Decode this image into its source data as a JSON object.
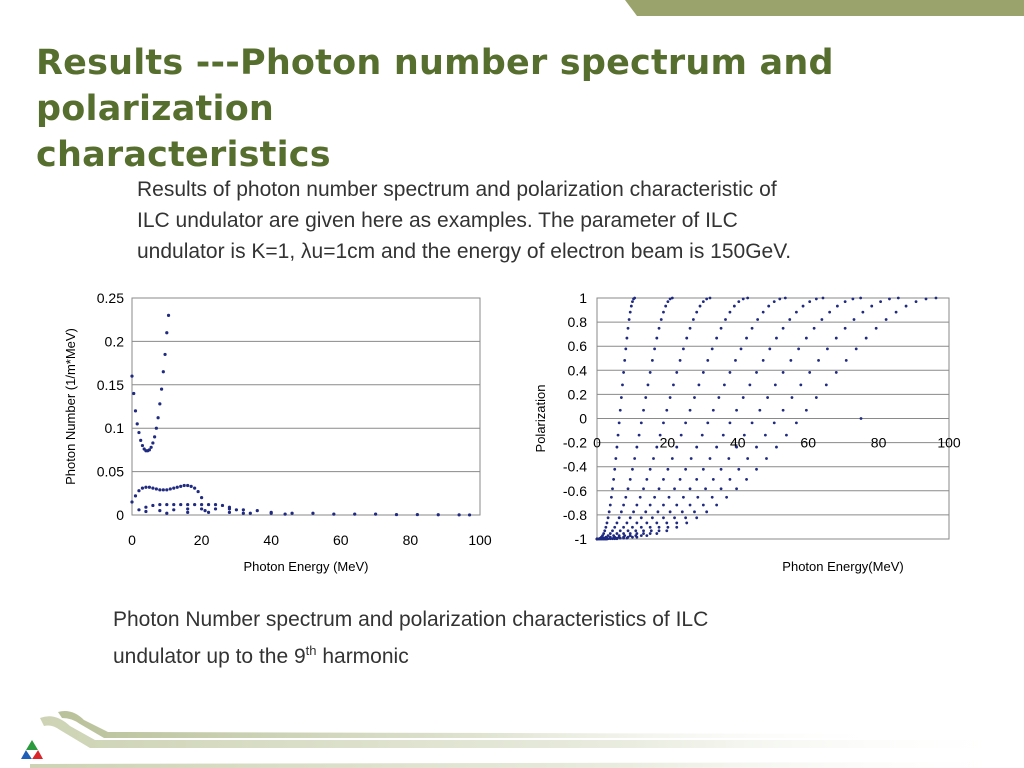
{
  "slide": {
    "title_line1": "Results ---Photon number spectrum and polarization",
    "title_line2": "characteristics",
    "paragraph_line1": "Results of photon number spectrum and polarization characteristic of",
    "paragraph_line2": "ILC undulator are given here as examples.   The parameter of ILC",
    "paragraph_line3": "undulator is K=1, λu=1cm and the energy of electron beam is 150GeV.",
    "caption_line1": "Photon Number spectrum and polarization characteristics of ILC",
    "caption_line2_pre": "undulator up to the 9",
    "caption_sup": "th",
    "caption_line2_post": " harmonic",
    "accent_color": "#566e2e",
    "band_color": "#9aa36b"
  },
  "chart_data": [
    {
      "type": "scatter",
      "xlabel": "Photon Energy (MeV)",
      "ylabel": "Photon Number (1/m*MeV)",
      "xlim": [
        0,
        100
      ],
      "ylim": [
        0,
        0.25
      ],
      "xticks": [
        "0",
        "20",
        "40",
        "60",
        "80",
        "100"
      ],
      "yticks": [
        "0",
        "0.05",
        "0.1",
        "0.15",
        "0.2",
        "0.25"
      ],
      "grid": true,
      "marker_color": "#1f2a80",
      "series": [
        {
          "x": [
            0,
            0.5,
            1,
            1.5,
            2,
            2.5,
            3,
            3.5,
            4,
            4.5,
            5,
            5.5,
            6,
            6.5,
            7,
            7.5,
            8,
            8.5,
            9,
            9.5,
            10,
            10.5
          ],
          "y": [
            0.16,
            0.14,
            0.12,
            0.105,
            0.095,
            0.086,
            0.08,
            0.076,
            0.074,
            0.074,
            0.075,
            0.078,
            0.083,
            0.09,
            0.1,
            0.112,
            0.128,
            0.145,
            0.165,
            0.185,
            0.21,
            0.23
          ]
        },
        {
          "x": [
            0,
            1,
            2,
            3,
            4,
            5,
            6,
            7,
            8,
            9,
            10,
            11,
            12,
            13,
            14,
            15,
            16,
            17,
            18,
            19,
            20,
            21
          ],
          "y": [
            0.015,
            0.022,
            0.028,
            0.031,
            0.032,
            0.032,
            0.031,
            0.03,
            0.029,
            0.029,
            0.029,
            0.03,
            0.031,
            0.032,
            0.033,
            0.034,
            0.034,
            0.033,
            0.031,
            0.027,
            0.02,
            0.005
          ]
        },
        {
          "x": [
            2,
            4,
            6,
            8,
            10,
            12,
            14,
            16,
            18,
            20,
            22,
            24,
            26,
            28,
            30,
            32
          ],
          "y": [
            0.006,
            0.009,
            0.011,
            0.012,
            0.012,
            0.012,
            0.012,
            0.012,
            0.012,
            0.012,
            0.012,
            0.012,
            0.011,
            0.009,
            0.006,
            0.002
          ]
        },
        {
          "x": [
            4,
            8,
            12,
            16,
            20,
            24,
            28,
            32,
            36,
            40,
            44
          ],
          "y": [
            0.004,
            0.005,
            0.006,
            0.007,
            0.007,
            0.007,
            0.007,
            0.006,
            0.005,
            0.003,
            0.001
          ]
        },
        {
          "x": [
            10,
            16,
            22,
            28,
            34,
            40,
            46,
            52,
            58,
            64,
            70,
            76,
            82,
            88,
            94,
            97
          ],
          "y": [
            0.002,
            0.003,
            0.003,
            0.003,
            0.002,
            0.002,
            0.002,
            0.002,
            0.001,
            0.001,
            0.001,
            0.0005,
            0.0005,
            0.0003,
            0.0002,
            0.0001
          ]
        }
      ]
    },
    {
      "type": "scatter",
      "xlabel": "Photon Energy(MeV)",
      "ylabel": "Polarization",
      "xlim": [
        0,
        100
      ],
      "ylim": [
        -1,
        1
      ],
      "xticks": [
        "0",
        "20",
        "40",
        "60",
        "80",
        "100"
      ],
      "yticks": [
        "-1",
        "-0.8",
        "-0.6",
        "-0.4",
        "-0.2",
        "0",
        "0.2",
        "0.4",
        "0.6",
        "0.8",
        "1"
      ],
      "grid": true,
      "marker_color": "#1f2a80",
      "harmonics": [
        {
          "start": 0,
          "end": 10.7
        },
        {
          "start": 0,
          "end": 21.4
        },
        {
          "start": 0,
          "end": 32.1
        },
        {
          "start": 0,
          "end": 42.8
        },
        {
          "start": 0,
          "end": 53.5
        },
        {
          "start": 0,
          "end": 64.2
        },
        {
          "start": 0,
          "end": 74.9
        },
        {
          "start": 0,
          "end": 85.6
        },
        {
          "start": 0,
          "end": 96.3
        }
      ],
      "extra_point": {
        "x": 75,
        "y": 0
      }
    }
  ]
}
